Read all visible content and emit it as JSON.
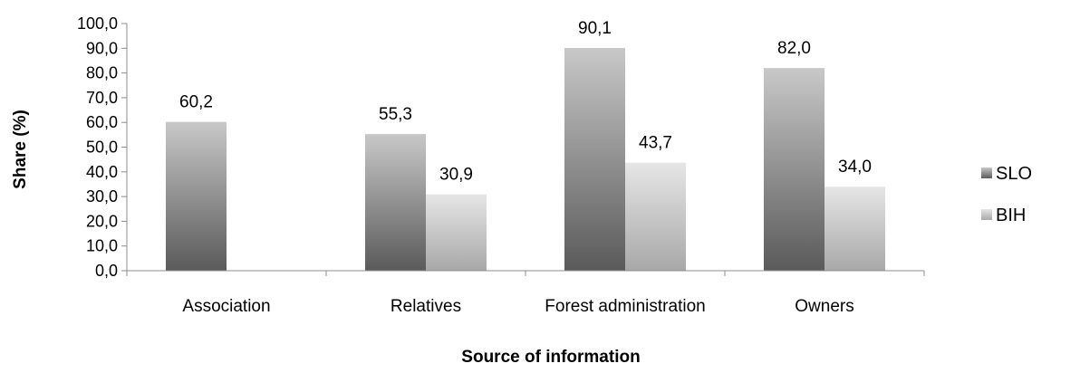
{
  "chart_data": {
    "type": "bar",
    "title": "",
    "xlabel": "Source of information",
    "ylabel": "Share (%)",
    "categories": [
      "Association",
      "Relatives",
      "Forest administration",
      "Owners"
    ],
    "series": [
      {
        "name": "SLO",
        "values": [
          60.2,
          55.3,
          90.1,
          82.0
        ],
        "value_labels": [
          "60,2",
          "55,3",
          "90,1",
          "82,0"
        ]
      },
      {
        "name": "BIH",
        "values": [
          null,
          30.9,
          43.7,
          34.0
        ],
        "value_labels": [
          "",
          "30,9",
          "43,7",
          "34,0"
        ]
      }
    ],
    "ylim": [
      0,
      100
    ],
    "yticks": [
      0,
      10,
      20,
      30,
      40,
      50,
      60,
      70,
      80,
      90,
      100
    ],
    "ytick_labels": [
      "0,0",
      "10,0",
      "20,0",
      "30,0",
      "40,0",
      "50,0",
      "60,0",
      "70,0",
      "80,0",
      "90,0",
      "100,0"
    ],
    "grid": false,
    "legend_position": "right",
    "colors": {
      "SLO": {
        "top": "#c8c8c8",
        "bottom": "#5a5a5a"
      },
      "BIH": {
        "top": "#e6e6e6",
        "bottom": "#a8a8a8"
      },
      "axis": "#8c8c8c"
    }
  }
}
